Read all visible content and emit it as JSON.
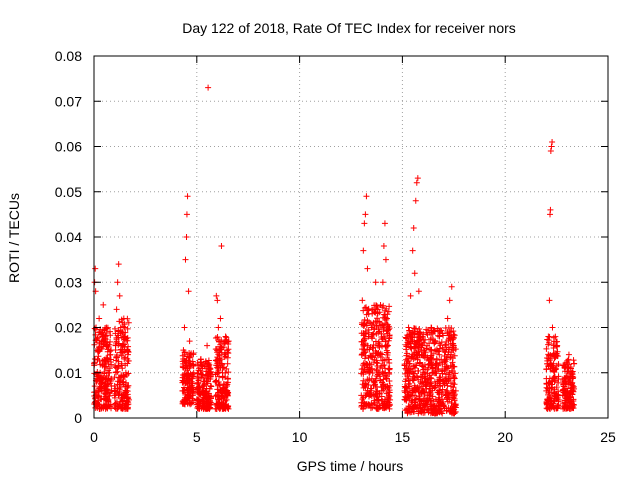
{
  "chart_data": {
    "type": "scatter",
    "title": "Day 122 of 2018, Rate Of TEC Index for receiver nors",
    "xlabel": "GPS time / hours",
    "ylabel": "ROTI / TECUs",
    "xlim": [
      0,
      25
    ],
    "ylim": [
      0,
      0.08
    ],
    "xticks": [
      0,
      5,
      10,
      15,
      20,
      25
    ],
    "yticks": [
      0,
      0.01,
      0.02,
      0.03,
      0.04,
      0.05,
      0.06,
      0.07,
      0.08
    ],
    "xtick_labels": [
      "0",
      "5",
      "10",
      "15",
      "20",
      "25"
    ],
    "ytick_labels": [
      "0",
      "0.01",
      "0.02",
      "0.03",
      "0.04",
      "0.05",
      "0.06",
      "0.07",
      "0.08"
    ],
    "grid": true,
    "marker": "+",
    "color": "#ff0000",
    "series": [
      {
        "name": "ROTI",
        "points": [
          [
            0.0,
            0.012
          ],
          [
            0.03,
            0.03
          ],
          [
            0.06,
            0.033
          ],
          [
            0.08,
            0.028
          ],
          [
            0.1,
            0.02
          ],
          [
            0.12,
            0.008
          ],
          [
            0.15,
            0.005
          ],
          [
            0.2,
            0.015
          ],
          [
            0.25,
            0.022
          ],
          [
            0.3,
            0.01
          ],
          [
            0.35,
            0.006
          ],
          [
            0.4,
            0.018
          ],
          [
            0.45,
            0.025
          ],
          [
            0.5,
            0.012
          ],
          [
            0.55,
            0.008
          ],
          [
            0.6,
            0.02
          ],
          [
            0.65,
            0.016
          ],
          [
            0.7,
            0.004
          ],
          [
            0.75,
            0.01
          ],
          [
            0.8,
            0.014
          ],
          [
            0.85,
            0.006
          ],
          [
            1.0,
            0.005
          ],
          [
            1.05,
            0.016
          ],
          [
            1.1,
            0.024
          ],
          [
            1.15,
            0.03
          ],
          [
            1.2,
            0.034
          ],
          [
            1.25,
            0.027
          ],
          [
            1.3,
            0.02
          ],
          [
            1.35,
            0.012
          ],
          [
            1.4,
            0.008
          ],
          [
            1.45,
            0.022
          ],
          [
            1.5,
            0.018
          ],
          [
            1.55,
            0.01
          ],
          [
            1.6,
            0.006
          ],
          [
            1.65,
            0.014
          ],
          [
            1.7,
            0.004
          ],
          [
            4.3,
            0.006
          ],
          [
            4.35,
            0.015
          ],
          [
            4.4,
            0.02
          ],
          [
            4.45,
            0.035
          ],
          [
            4.5,
            0.04
          ],
          [
            4.52,
            0.045
          ],
          [
            4.55,
            0.049
          ],
          [
            4.6,
            0.028
          ],
          [
            4.65,
            0.017
          ],
          [
            4.7,
            0.012
          ],
          [
            4.75,
            0.008
          ],
          [
            4.8,
            0.005
          ],
          [
            4.85,
            0.01
          ],
          [
            5.0,
            0.004
          ],
          [
            5.1,
            0.009
          ],
          [
            5.2,
            0.013
          ],
          [
            5.3,
            0.006
          ],
          [
            5.4,
            0.012
          ],
          [
            5.5,
            0.016
          ],
          [
            5.55,
            0.073
          ],
          [
            5.6,
            0.011
          ],
          [
            5.7,
            0.007
          ],
          [
            5.9,
            0.008
          ],
          [
            5.95,
            0.027
          ],
          [
            6.0,
            0.026
          ],
          [
            6.05,
            0.02
          ],
          [
            6.1,
            0.015
          ],
          [
            6.15,
            0.022
          ],
          [
            6.2,
            0.038
          ],
          [
            6.25,
            0.01
          ],
          [
            6.3,
            0.006
          ],
          [
            6.35,
            0.014
          ],
          [
            6.4,
            0.018
          ],
          [
            6.45,
            0.004
          ],
          [
            6.5,
            0.012
          ],
          [
            6.55,
            0.017
          ],
          [
            13.0,
            0.005
          ],
          [
            13.05,
            0.026
          ],
          [
            13.1,
            0.037
          ],
          [
            13.15,
            0.043
          ],
          [
            13.2,
            0.045
          ],
          [
            13.25,
            0.049
          ],
          [
            13.3,
            0.033
          ],
          [
            13.35,
            0.018
          ],
          [
            13.4,
            0.012
          ],
          [
            13.5,
            0.02
          ],
          [
            13.6,
            0.008
          ],
          [
            13.7,
            0.03
          ],
          [
            13.8,
            0.024
          ],
          [
            13.9,
            0.014
          ],
          [
            14.0,
            0.006
          ],
          [
            14.05,
            0.03
          ],
          [
            14.1,
            0.038
          ],
          [
            14.15,
            0.043
          ],
          [
            14.2,
            0.035
          ],
          [
            14.25,
            0.022
          ],
          [
            14.3,
            0.016
          ],
          [
            14.35,
            0.01
          ],
          [
            14.4,
            0.004
          ],
          [
            15.1,
            0.006
          ],
          [
            15.2,
            0.012
          ],
          [
            15.3,
            0.02
          ],
          [
            15.4,
            0.027
          ],
          [
            15.5,
            0.037
          ],
          [
            15.55,
            0.042
          ],
          [
            15.6,
            0.032
          ],
          [
            15.65,
            0.048
          ],
          [
            15.7,
            0.052
          ],
          [
            15.75,
            0.053
          ],
          [
            15.8,
            0.028
          ],
          [
            15.9,
            0.018
          ],
          [
            16.0,
            0.01
          ],
          [
            16.2,
            0.016
          ],
          [
            16.4,
            0.02
          ],
          [
            16.6,
            0.012
          ],
          [
            16.8,
            0.018
          ],
          [
            17.0,
            0.008
          ],
          [
            17.2,
            0.022
          ],
          [
            17.3,
            0.026
          ],
          [
            17.4,
            0.029
          ],
          [
            17.5,
            0.016
          ],
          [
            17.6,
            0.006
          ],
          [
            22.0,
            0.006
          ],
          [
            22.05,
            0.012
          ],
          [
            22.1,
            0.018
          ],
          [
            22.15,
            0.026
          ],
          [
            22.18,
            0.045
          ],
          [
            22.2,
            0.046
          ],
          [
            22.22,
            0.059
          ],
          [
            22.25,
            0.06
          ],
          [
            22.28,
            0.061
          ],
          [
            22.3,
            0.02
          ],
          [
            22.35,
            0.014
          ],
          [
            22.4,
            0.008
          ],
          [
            22.5,
            0.016
          ],
          [
            22.6,
            0.004
          ],
          [
            22.8,
            0.005
          ],
          [
            22.9,
            0.011
          ],
          [
            23.0,
            0.008
          ],
          [
            23.1,
            0.014
          ],
          [
            23.2,
            0.01
          ],
          [
            23.3,
            0.006
          ],
          [
            23.35,
            0.012
          ]
        ],
        "dense_clusters": [
          {
            "x_start": 0.0,
            "x_end": 0.85,
            "y_min": 0.002,
            "y_max": 0.02
          },
          {
            "x_start": 1.0,
            "x_end": 1.7,
            "y_min": 0.002,
            "y_max": 0.022
          },
          {
            "x_start": 4.3,
            "x_end": 4.85,
            "y_min": 0.003,
            "y_max": 0.015
          },
          {
            "x_start": 5.0,
            "x_end": 5.7,
            "y_min": 0.002,
            "y_max": 0.013
          },
          {
            "x_start": 5.9,
            "x_end": 6.55,
            "y_min": 0.002,
            "y_max": 0.018
          },
          {
            "x_start": 13.0,
            "x_end": 14.4,
            "y_min": 0.002,
            "y_max": 0.025
          },
          {
            "x_start": 15.1,
            "x_end": 17.6,
            "y_min": 0.001,
            "y_max": 0.02
          },
          {
            "x_start": 22.0,
            "x_end": 22.6,
            "y_min": 0.002,
            "y_max": 0.018
          },
          {
            "x_start": 22.8,
            "x_end": 23.35,
            "y_min": 0.002,
            "y_max": 0.013
          }
        ]
      }
    ]
  }
}
